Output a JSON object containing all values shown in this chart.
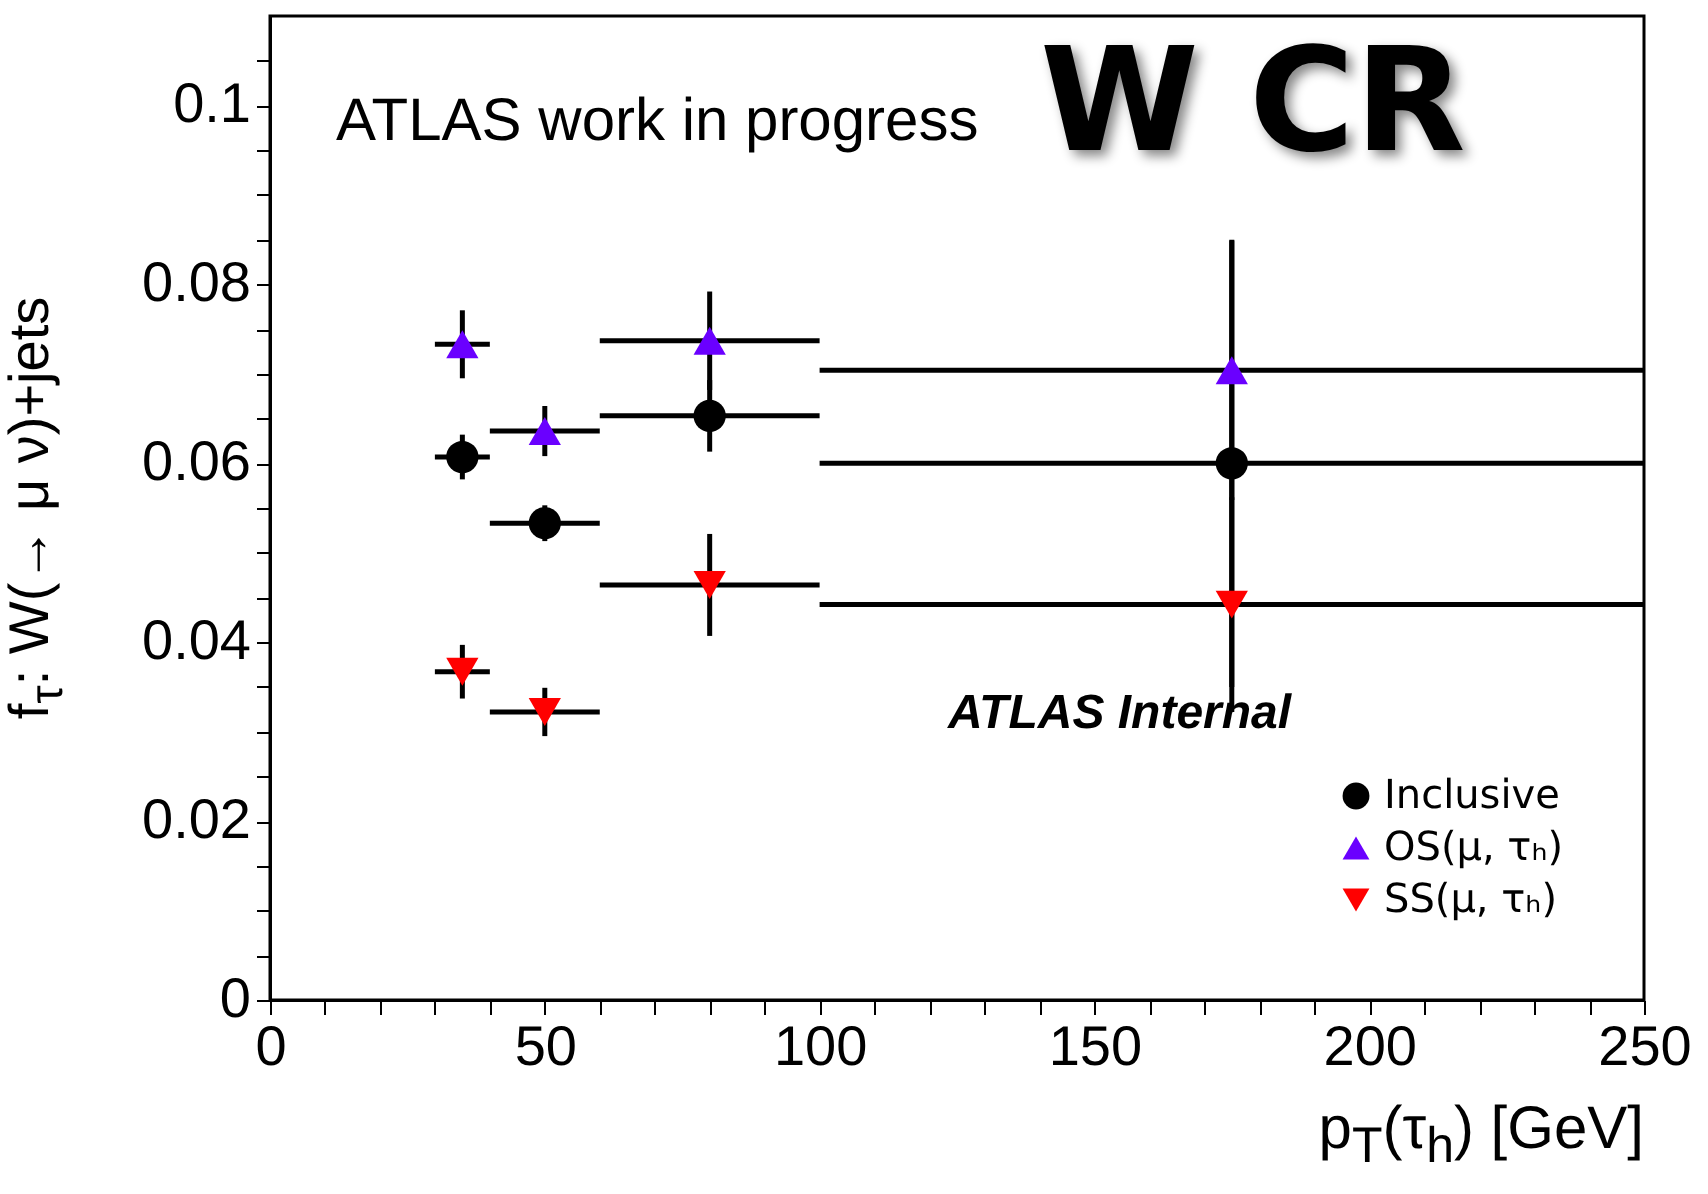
{
  "chart_data": {
    "type": "scatter",
    "xlabel": "p$_{T}$(τ$_{h}$)  [GeV]",
    "ylabel": "f$_{τ}$: W(→ μ ν)+jets",
    "annotations": [
      "ATLAS work in progress",
      "W CR",
      "ATLAS Internal"
    ],
    "xlim": [
      0,
      250
    ],
    "xticks": [
      0,
      {
        "value": 10,
        "label": null
      },
      {
        "value": 20,
        "label": null
      },
      {
        "value": 30,
        "label": null
      },
      {
        "value": 40,
        "label": null
      },
      50,
      {
        "value": 60,
        "label": null
      },
      {
        "value": 70,
        "label": null
      },
      {
        "value": 80,
        "label": null
      },
      {
        "value": 90,
        "label": null
      },
      100,
      {
        "value": 110,
        "label": null
      },
      {
        "value": 120,
        "label": null
      },
      {
        "value": 130,
        "label": null
      },
      {
        "value": 140,
        "label": null
      },
      150,
      {
        "value": 160,
        "label": null
      },
      {
        "value": 170,
        "label": null
      },
      {
        "value": 180,
        "label": null
      },
      {
        "value": 190,
        "label": null
      },
      200,
      {
        "value": 210,
        "label": null
      },
      {
        "value": 220,
        "label": null
      },
      {
        "value": 230,
        "label": null
      },
      {
        "value": 240,
        "label": null
      },
      250
    ],
    "ylim": [
      0,
      0.11
    ],
    "yticks": [
      0,
      {
        "value": 0.005,
        "label": null
      },
      {
        "value": 0.01,
        "label": null
      },
      {
        "value": 0.015,
        "label": null
      },
      0.02,
      {
        "value": 0.025,
        "label": null
      },
      {
        "value": 0.03,
        "label": null
      },
      {
        "value": 0.035,
        "label": null
      },
      0.04,
      {
        "value": 0.045,
        "label": null
      },
      {
        "value": 0.05,
        "label": null
      },
      {
        "value": 0.055,
        "label": null
      },
      0.06,
      {
        "value": 0.065,
        "label": null
      },
      {
        "value": 0.07,
        "label": null
      },
      {
        "value": 0.075,
        "label": null
      },
      0.08,
      {
        "value": 0.085,
        "label": null
      },
      {
        "value": 0.09,
        "label": null
      },
      {
        "value": 0.095,
        "label": null
      },
      0.1,
      {
        "value": 0.105,
        "label": null
      }
    ],
    "grid": false,
    "legend": "bottom right",
    "series": [
      {
        "name": "Inclusive",
        "color": "#000000",
        "marker": "circle",
        "x": [
          35,
          50,
          80,
          175
        ],
        "values": [
          0.0607,
          0.0533,
          0.0653,
          0.06
        ],
        "errors": [
          0.0025,
          0.002,
          0.004,
          0.025
        ],
        "xerrors": [
          5,
          10,
          20,
          75
        ]
      },
      {
        "name": "OS(μ, τₕ)",
        "color": "#6a00ff",
        "marker": "triangle",
        "x": [
          35,
          50,
          80,
          175
        ],
        "values": [
          0.0733,
          0.0636,
          0.0737,
          0.0704
        ],
        "errors": [
          0.0038,
          0.0028,
          0.0055,
          0.0145
        ],
        "xerrors": [
          5,
          10,
          20,
          75
        ]
      },
      {
        "name": "SS(μ, τₕ)",
        "color": "#ff0000",
        "marker": "triangle-down",
        "x": [
          35,
          50,
          80,
          175
        ],
        "values": [
          0.0367,
          0.0322,
          0.0464,
          0.0442
        ],
        "errors": [
          0.003,
          0.0027,
          0.0057,
          0.012
        ],
        "xerrors": [
          5,
          10,
          20,
          75
        ]
      }
    ]
  }
}
